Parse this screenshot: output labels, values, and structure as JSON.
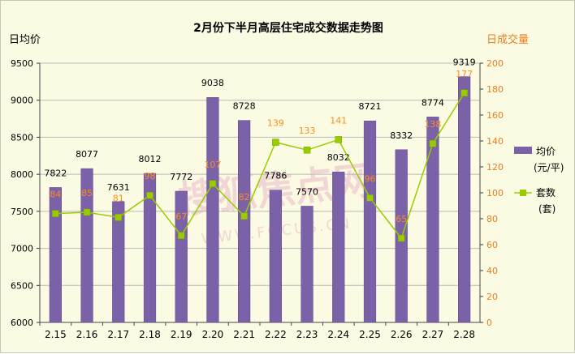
{
  "chart_data": {
    "type": "bar",
    "title": "2月份下半月高层住宅成交数据走势图",
    "ylabel_left": "日均价",
    "ylabel_right": "日成交量",
    "categories": [
      "2.15",
      "2.16",
      "2.17",
      "2.18",
      "2.19",
      "2.20",
      "2.21",
      "2.22",
      "2.23",
      "2.24",
      "2.25",
      "2.26",
      "2.27",
      "2.28"
    ],
    "ylim_left": [
      6000,
      9500
    ],
    "yticks_left": [
      6000,
      6500,
      7000,
      7500,
      8000,
      8500,
      9000,
      9500
    ],
    "ylim_right": [
      0,
      200
    ],
    "yticks_right": [
      0,
      20,
      40,
      60,
      80,
      100,
      120,
      140,
      160,
      180,
      200
    ],
    "grid": true,
    "legend_position": "right",
    "series": [
      {
        "name": "均价(元/平)",
        "legend_line1": "均价",
        "legend_line2": "(元/平)",
        "kind": "bar",
        "axis": "left",
        "color": "#7b62a8",
        "values": [
          7822,
          8077,
          7631,
          8012,
          7772,
          9038,
          8728,
          7786,
          7570,
          8032,
          8721,
          8332,
          8774,
          9319
        ]
      },
      {
        "name": "套数(套)",
        "legend_line1": "套数",
        "legend_line2": "(套)",
        "kind": "line",
        "axis": "right",
        "color": "#99cc00",
        "label_color": "#ff8c1a",
        "values": [
          84,
          85,
          81,
          98,
          67,
          107,
          82,
          139,
          133,
          141,
          96,
          65,
          138,
          177
        ]
      }
    ],
    "watermark": "搜狐焦点网 WWW.FOCUS.CN"
  }
}
